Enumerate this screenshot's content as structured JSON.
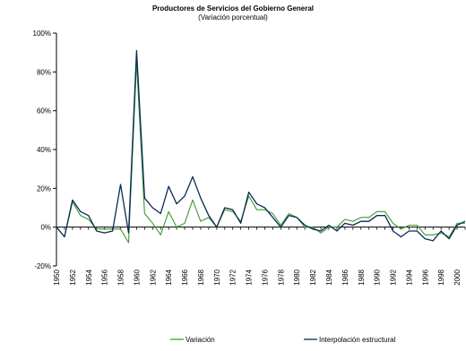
{
  "chart_data": {
    "type": "line",
    "title": "Productores de Servicios del Gobierno General",
    "subtitle": "(Variación  porcentual)",
    "xlabel": "",
    "ylabel": "",
    "ylim": [
      -20,
      100
    ],
    "y_ticks": [
      -20,
      0,
      20,
      40,
      60,
      80,
      100
    ],
    "y_tick_labels": [
      "-20%",
      "0%",
      "20%",
      "40%",
      "60%",
      "80%",
      "100%"
    ],
    "x_ticks": [
      1950,
      1952,
      1954,
      1956,
      1958,
      1960,
      1962,
      1964,
      1966,
      1968,
      1970,
      1972,
      1974,
      1976,
      1978,
      1980,
      1982,
      1984,
      1986,
      1988,
      1990,
      1992,
      1994,
      1996,
      1998,
      2000
    ],
    "x_tick_labels": [
      "1950",
      "1952",
      "1954",
      "1956",
      "1958",
      "1960",
      "1962",
      "1964",
      "1966",
      "1968",
      "1970",
      "1972",
      "1974",
      "1976",
      "1978",
      "1980",
      "1982",
      "1984",
      "1986",
      "1988",
      "1990",
      "1992",
      "1994",
      "1996",
      "1998",
      "2000"
    ],
    "x": [
      1950,
      1951,
      1952,
      1953,
      1954,
      1955,
      1956,
      1957,
      1958,
      1959,
      1960,
      1961,
      1962,
      1963,
      1964,
      1965,
      1966,
      1967,
      1968,
      1969,
      1970,
      1971,
      1972,
      1973,
      1974,
      1975,
      1976,
      1977,
      1978,
      1979,
      1980,
      1981,
      1982,
      1983,
      1984,
      1985,
      1986,
      1987,
      1988,
      1989,
      1990,
      1991,
      1992,
      1993,
      1994,
      1995,
      1996,
      1997,
      1998,
      1999,
      2000,
      2001
    ],
    "series": [
      {
        "name": "Variación",
        "color": "#3a9a32",
        "values": [
          0,
          -5,
          13,
          6,
          4,
          -1,
          -1,
          -1,
          -1,
          -8,
          85,
          7,
          2,
          -4,
          8,
          0,
          2,
          14,
          3,
          5,
          0,
          9,
          8,
          3,
          16,
          9,
          9,
          7,
          1,
          7,
          5,
          0,
          0,
          -3,
          0,
          0,
          4,
          3,
          5,
          5,
          8,
          8,
          2,
          -1,
          1,
          1,
          -4,
          -4,
          -3,
          -5,
          2,
          2
        ]
      },
      {
        "name": "Interpolación estructural",
        "color": "#0b2a55",
        "values": [
          0,
          -5,
          14,
          8,
          6,
          -2,
          -3,
          -2,
          22,
          -3,
          91,
          15,
          10,
          7,
          21,
          12,
          16,
          26,
          15,
          6,
          0,
          10,
          9,
          2,
          18,
          12,
          10,
          5,
          0,
          6,
          5,
          1,
          -1,
          -2,
          1,
          -2,
          2,
          1,
          3,
          3,
          6,
          6,
          -2,
          -5,
          -2,
          -2,
          -6,
          -7,
          -2,
          -6,
          1,
          3
        ]
      }
    ],
    "legend_position": "bottom",
    "grid": false
  }
}
